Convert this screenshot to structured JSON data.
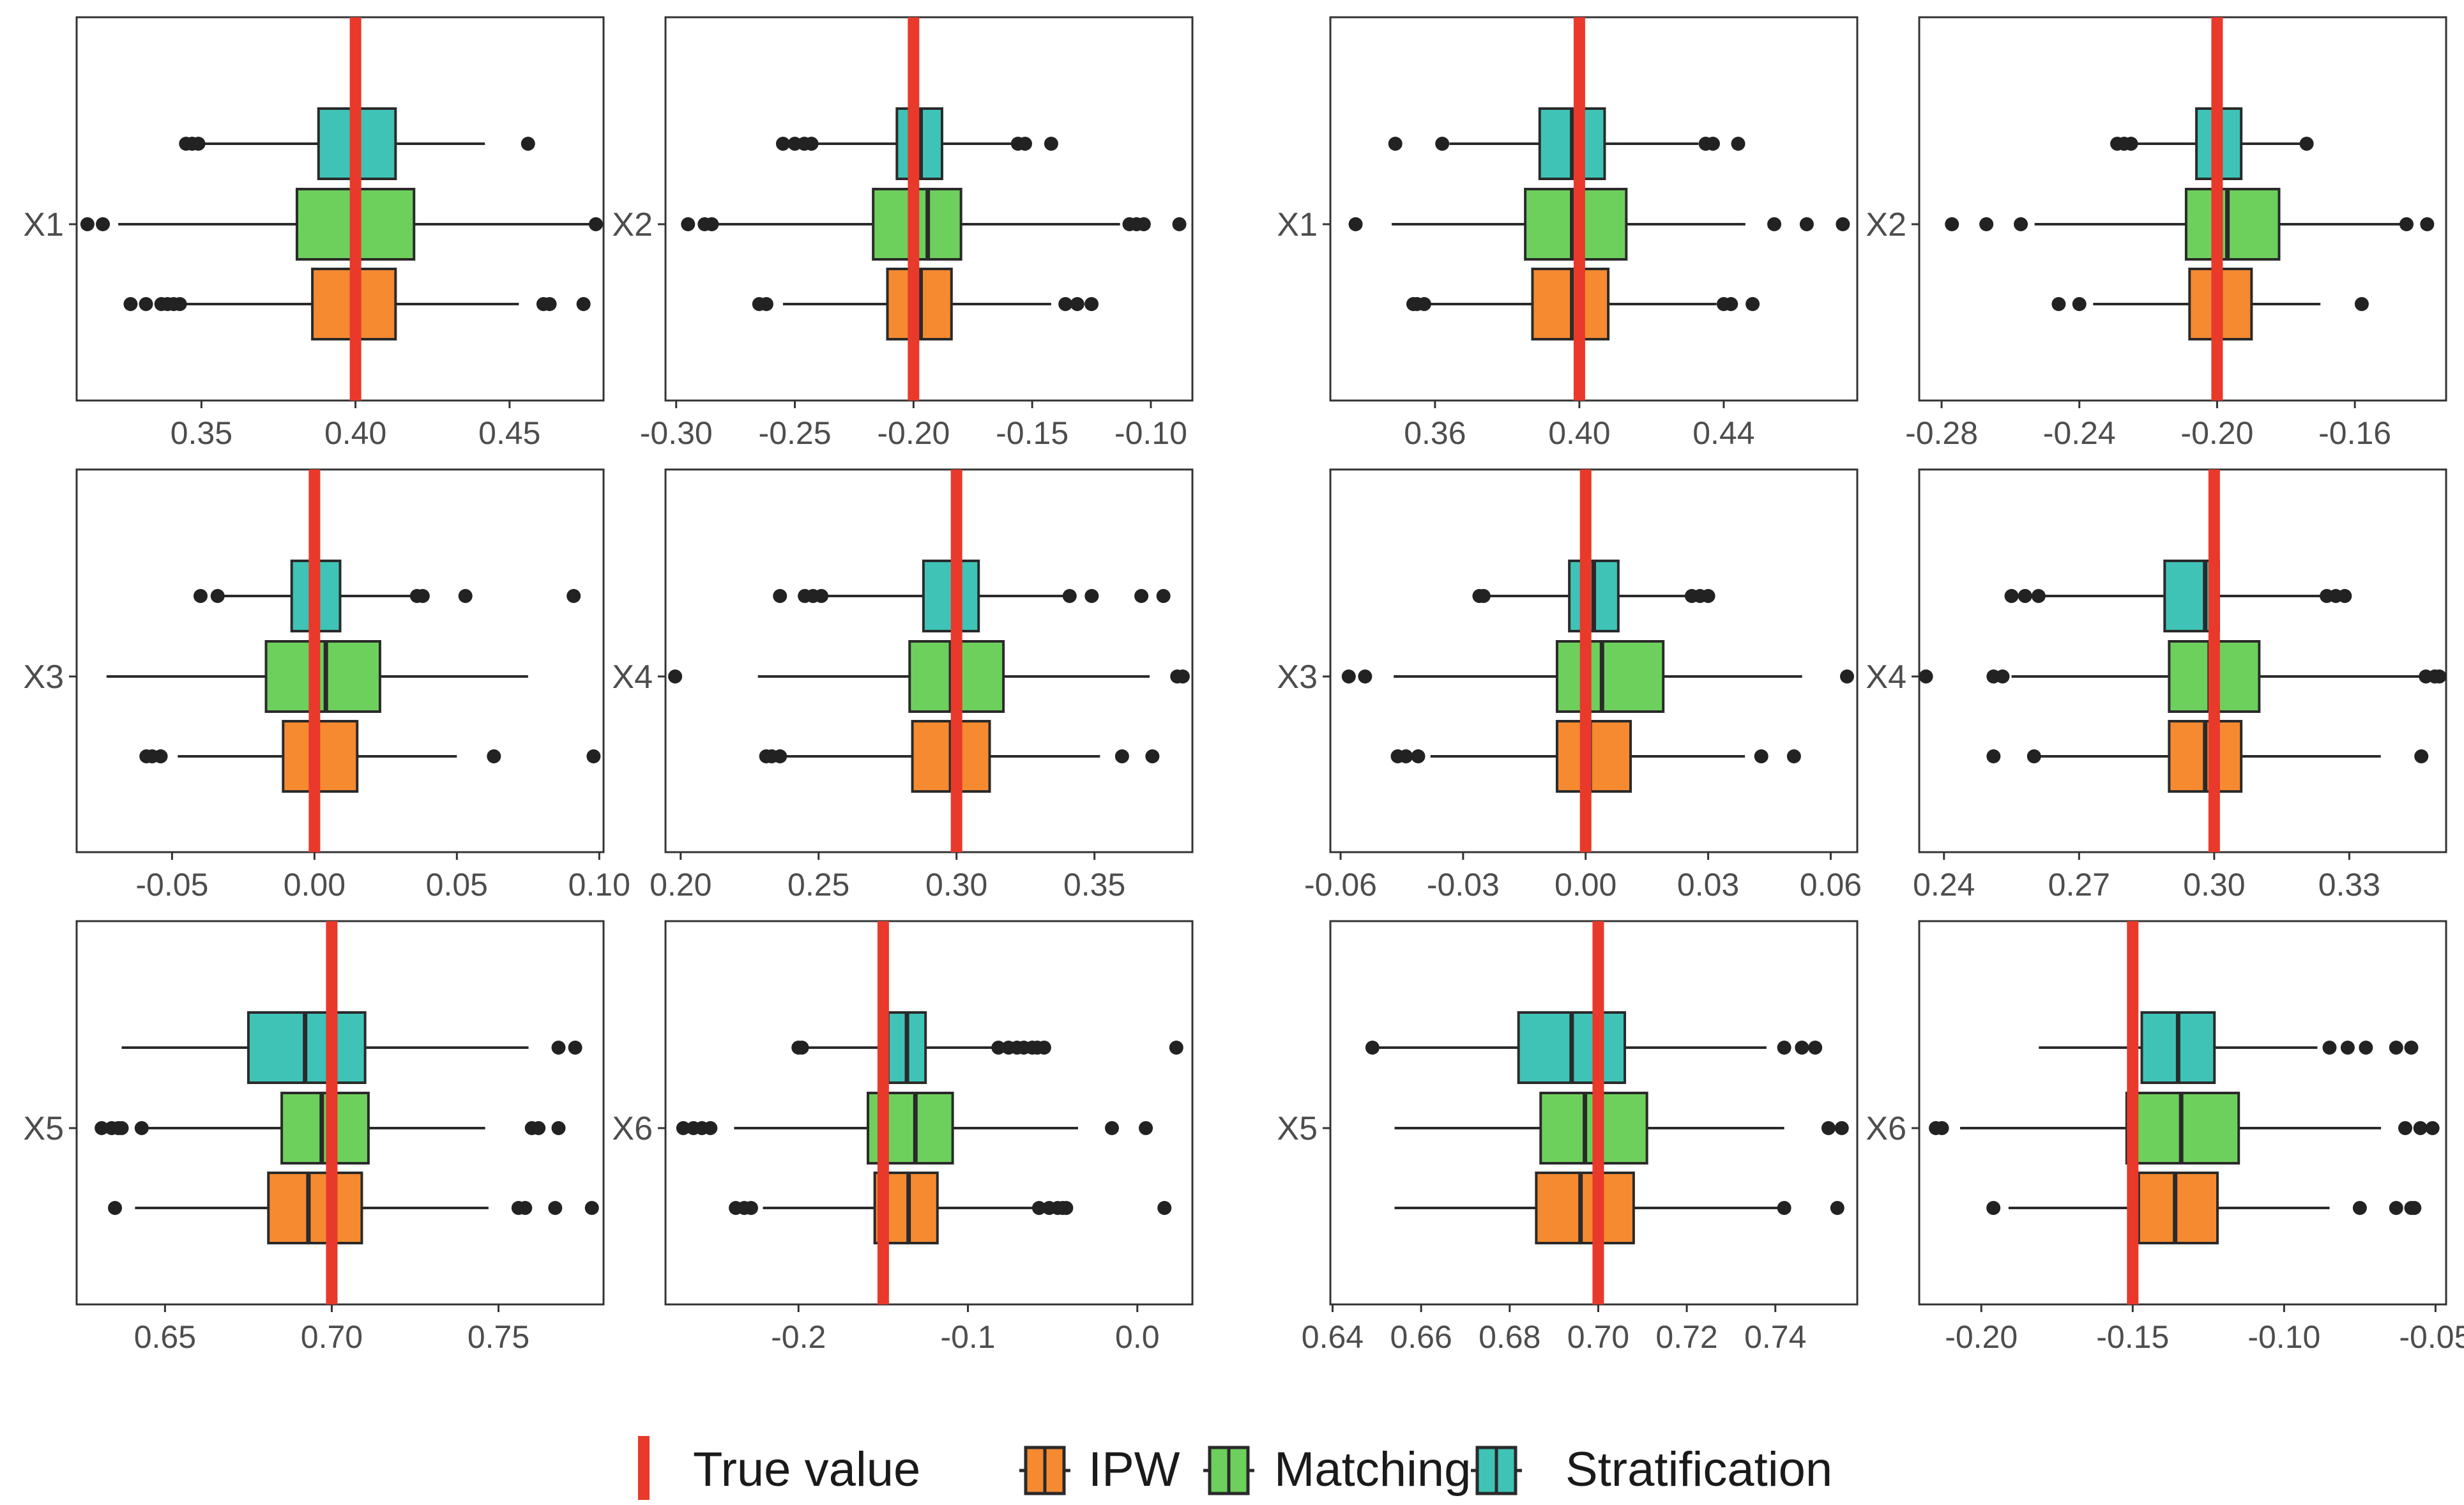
{
  "colors": {
    "ipw": "#f58a31",
    "matching": "#6dd05c",
    "stratification": "#3fc3b7",
    "true_value": "#e8392b",
    "outline": "#2a2a2a",
    "outlier": "#222222",
    "panel_border": "#333333",
    "axis_text": "#4d4d4d"
  },
  "legend": {
    "true_value": "True value",
    "ipw": "IPW",
    "matching": "Matching",
    "stratification": "Stratification"
  },
  "chart_data": [
    {
      "type": "boxplot",
      "variable": "X1",
      "true_value": 0.4,
      "xlim": [
        0.3095,
        0.4805
      ],
      "ticks": [
        0.35,
        0.4,
        0.45
      ],
      "tick_labels": [
        "0.35",
        "0.40",
        "0.45"
      ],
      "series": [
        {
          "name": "Stratification",
          "q1": 0.388,
          "median": 0.401,
          "q3": 0.413,
          "whisker_low": 0.348,
          "whisker_high": 0.442,
          "outliers": [
            0.345,
            0.347,
            0.349,
            0.456
          ]
        },
        {
          "name": "Matching",
          "q1": 0.381,
          "median": 0.401,
          "q3": 0.419,
          "whisker_low": 0.323,
          "whisker_high": 0.477,
          "outliers": [
            0.313,
            0.318,
            0.478
          ]
        },
        {
          "name": "IPW",
          "q1": 0.386,
          "median": 0.4,
          "q3": 0.413,
          "whisker_low": 0.335,
          "whisker_high": 0.453,
          "outliers": [
            0.327,
            0.332,
            0.337,
            0.339,
            0.341,
            0.343,
            0.461,
            0.463,
            0.474
          ]
        }
      ]
    },
    {
      "type": "boxplot",
      "variable": "X2",
      "true_value": -0.2,
      "xlim": [
        -0.3045,
        -0.0825
      ],
      "ticks": [
        -0.3,
        -0.25,
        -0.2,
        -0.15,
        -0.1
      ],
      "tick_labels": [
        "-0.30",
        "-0.25",
        "-0.20",
        "-0.15",
        "-0.10"
      ],
      "series": [
        {
          "name": "Stratification",
          "q1": -0.207,
          "median": -0.197,
          "q3": -0.188,
          "whisker_low": -0.247,
          "whisker_high": -0.158,
          "outliers": [
            -0.255,
            -0.25,
            -0.246,
            -0.243,
            -0.156,
            -0.153,
            -0.142
          ]
        },
        {
          "name": "Matching",
          "q1": -0.217,
          "median": -0.194,
          "q3": -0.18,
          "whisker_low": -0.283,
          "whisker_high": -0.113,
          "outliers": [
            -0.295,
            -0.288,
            -0.285,
            -0.109,
            -0.106,
            -0.103,
            -0.088
          ]
        },
        {
          "name": "IPW",
          "q1": -0.211,
          "median": -0.197,
          "q3": -0.184,
          "whisker_low": -0.255,
          "whisker_high": -0.142,
          "outliers": [
            -0.265,
            -0.262,
            -0.136,
            -0.131,
            -0.125
          ]
        }
      ]
    },
    {
      "type": "boxplot",
      "variable": "X1",
      "true_value": 0.4,
      "xlim": [
        0.331,
        0.477
      ],
      "ticks": [
        0.36,
        0.4,
        0.44
      ],
      "tick_labels": [
        "0.36",
        "0.40",
        "0.44"
      ],
      "series": [
        {
          "name": "Stratification",
          "q1": 0.389,
          "median": 0.398,
          "q3": 0.407,
          "whisker_low": 0.364,
          "whisker_high": 0.433,
          "outliers": [
            0.349,
            0.362,
            0.435,
            0.437,
            0.444
          ]
        },
        {
          "name": "Matching",
          "q1": 0.385,
          "median": 0.398,
          "q3": 0.413,
          "whisker_low": 0.348,
          "whisker_high": 0.446,
          "outliers": [
            0.338,
            0.454,
            0.463,
            0.473
          ]
        },
        {
          "name": "IPW",
          "q1": 0.387,
          "median": 0.398,
          "q3": 0.408,
          "whisker_low": 0.358,
          "whisker_high": 0.438,
          "outliers": [
            0.354,
            0.355,
            0.357,
            0.44,
            0.442,
            0.448
          ]
        }
      ]
    },
    {
      "type": "boxplot",
      "variable": "X2",
      "true_value": -0.2,
      "xlim": [
        -0.2865,
        -0.1335
      ],
      "ticks": [
        -0.28,
        -0.24,
        -0.2,
        -0.16
      ],
      "tick_labels": [
        "-0.28",
        "-0.24",
        "-0.20",
        "-0.16"
      ],
      "series": [
        {
          "name": "Stratification",
          "q1": -0.206,
          "median": -0.2,
          "q3": -0.193,
          "whisker_low": -0.223,
          "whisker_high": -0.174,
          "outliers": [
            -0.229,
            -0.227,
            -0.225,
            -0.174
          ]
        },
        {
          "name": "Matching",
          "q1": -0.209,
          "median": -0.197,
          "q3": -0.182,
          "whisker_low": -0.253,
          "whisker_high": -0.145,
          "outliers": [
            -0.277,
            -0.267,
            -0.257,
            -0.145,
            -0.139
          ]
        },
        {
          "name": "IPW",
          "q1": -0.208,
          "median": -0.199,
          "q3": -0.19,
          "whisker_low": -0.236,
          "whisker_high": -0.17,
          "outliers": [
            -0.246,
            -0.24,
            -0.158
          ]
        }
      ]
    },
    {
      "type": "boxplot",
      "variable": "X3",
      "true_value": 0.0,
      "xlim": [
        -0.0835,
        0.1015
      ],
      "ticks": [
        -0.05,
        0.0,
        0.05,
        0.1
      ],
      "tick_labels": [
        "-0.05",
        "0.00",
        "0.05",
        "0.10"
      ],
      "series": [
        {
          "name": "Stratification",
          "q1": -0.008,
          "median": 0.001,
          "q3": 0.009,
          "whisker_low": -0.032,
          "whisker_high": 0.035,
          "outliers": [
            -0.04,
            -0.034,
            0.036,
            0.038,
            0.053,
            0.091
          ]
        },
        {
          "name": "Matching",
          "q1": -0.017,
          "median": 0.004,
          "q3": 0.023,
          "whisker_low": -0.073,
          "whisker_high": 0.075,
          "outliers": []
        },
        {
          "name": "IPW",
          "q1": -0.011,
          "median": 0.001,
          "q3": 0.015,
          "whisker_low": -0.048,
          "whisker_high": 0.05,
          "outliers": [
            -0.059,
            -0.057,
            -0.054,
            0.063,
            0.098
          ]
        }
      ]
    },
    {
      "type": "boxplot",
      "variable": "X4",
      "true_value": 0.3,
      "xlim": [
        0.1945,
        0.3855
      ],
      "ticks": [
        0.2,
        0.25,
        0.3,
        0.35
      ],
      "tick_labels": [
        "0.20",
        "0.25",
        "0.30",
        "0.35"
      ],
      "series": [
        {
          "name": "Stratification",
          "q1": 0.288,
          "median": 0.301,
          "q3": 0.308,
          "whisker_low": 0.252,
          "whisker_high": 0.341,
          "outliers": [
            0.236,
            0.245,
            0.248,
            0.251,
            0.341,
            0.349,
            0.367,
            0.375
          ]
        },
        {
          "name": "Matching",
          "q1": 0.283,
          "median": 0.298,
          "q3": 0.317,
          "whisker_low": 0.228,
          "whisker_high": 0.37,
          "outliers": [
            0.198,
            0.38,
            0.382
          ]
        },
        {
          "name": "IPW",
          "q1": 0.284,
          "median": 0.298,
          "q3": 0.312,
          "whisker_low": 0.238,
          "whisker_high": 0.352,
          "outliers": [
            0.231,
            0.233,
            0.236,
            0.36,
            0.371
          ]
        }
      ]
    },
    {
      "type": "boxplot",
      "variable": "X3",
      "true_value": 0.0,
      "xlim": [
        -0.0625,
        0.0665
      ],
      "ticks": [
        -0.06,
        -0.03,
        0.0,
        0.03,
        0.06
      ],
      "tick_labels": [
        "-0.06",
        "-0.03",
        "0.00",
        "0.03",
        "0.06"
      ],
      "series": [
        {
          "name": "Stratification",
          "q1": -0.004,
          "median": 0.002,
          "q3": 0.008,
          "whisker_low": -0.024,
          "whisker_high": 0.025,
          "outliers": [
            -0.026,
            -0.025,
            0.026,
            0.028,
            0.03
          ]
        },
        {
          "name": "Matching",
          "q1": -0.007,
          "median": 0.004,
          "q3": 0.019,
          "whisker_low": -0.047,
          "whisker_high": 0.053,
          "outliers": [
            -0.058,
            -0.054,
            0.064
          ]
        },
        {
          "name": "IPW",
          "q1": -0.007,
          "median": 0.001,
          "q3": 0.011,
          "whisker_low": -0.038,
          "whisker_high": 0.039,
          "outliers": [
            -0.046,
            -0.044,
            -0.041,
            0.043,
            0.051
          ]
        }
      ]
    },
    {
      "type": "boxplot",
      "variable": "X4",
      "true_value": 0.3,
      "xlim": [
        0.2345,
        0.3515
      ],
      "ticks": [
        0.24,
        0.27,
        0.3,
        0.33
      ],
      "tick_labels": [
        "0.24",
        "0.27",
        "0.30",
        "0.33"
      ],
      "series": [
        {
          "name": "Stratification",
          "q1": 0.289,
          "median": 0.298,
          "q3": 0.301,
          "whisker_low": 0.257,
          "whisker_high": 0.324,
          "outliers": [
            0.255,
            0.258,
            0.261,
            0.325,
            0.327,
            0.329
          ]
        },
        {
          "name": "Matching",
          "q1": 0.29,
          "median": 0.299,
          "q3": 0.31,
          "whisker_low": 0.255,
          "whisker_high": 0.346,
          "outliers": [
            0.236,
            0.251,
            0.253,
            0.347,
            0.349,
            0.35
          ]
        },
        {
          "name": "IPW",
          "q1": 0.29,
          "median": 0.298,
          "q3": 0.306,
          "whisker_low": 0.26,
          "whisker_high": 0.337,
          "outliers": [
            0.251,
            0.26,
            0.346
          ]
        }
      ]
    },
    {
      "type": "boxplot",
      "variable": "X5",
      "true_value": 0.7,
      "xlim": [
        0.6235,
        0.7815
      ],
      "ticks": [
        0.65,
        0.7,
        0.75
      ],
      "tick_labels": [
        "0.65",
        "0.70",
        "0.75"
      ],
      "series": [
        {
          "name": "Stratification",
          "q1": 0.675,
          "median": 0.692,
          "q3": 0.71,
          "whisker_low": 0.637,
          "whisker_high": 0.759,
          "outliers": [
            0.768,
            0.773
          ]
        },
        {
          "name": "Matching",
          "q1": 0.685,
          "median": 0.697,
          "q3": 0.711,
          "whisker_low": 0.641,
          "whisker_high": 0.746,
          "outliers": [
            0.631,
            0.634,
            0.636,
            0.637,
            0.643,
            0.76,
            0.762,
            0.768
          ]
        },
        {
          "name": "IPW",
          "q1": 0.681,
          "median": 0.693,
          "q3": 0.709,
          "whisker_low": 0.641,
          "whisker_high": 0.747,
          "outliers": [
            0.635,
            0.756,
            0.758,
            0.767,
            0.778
          ]
        }
      ]
    },
    {
      "type": "boxplot",
      "variable": "X6",
      "true_value": -0.15,
      "xlim": [
        -0.2785,
        0.0325
      ],
      "ticks": [
        -0.2,
        -0.1,
        0.0
      ],
      "tick_labels": [
        "-0.2",
        "-0.1",
        "0.0"
      ],
      "series": [
        {
          "name": "Stratification",
          "q1": -0.147,
          "median": -0.136,
          "q3": -0.125,
          "whisker_low": -0.197,
          "whisker_high": -0.085,
          "outliers": [
            -0.2,
            -0.198,
            -0.082,
            -0.076,
            -0.071,
            -0.067,
            -0.062,
            -0.059,
            -0.055,
            0.023
          ]
        },
        {
          "name": "Matching",
          "q1": -0.159,
          "median": -0.131,
          "q3": -0.109,
          "whisker_low": -0.238,
          "whisker_high": -0.035,
          "outliers": [
            -0.268,
            -0.262,
            -0.257,
            -0.252,
            -0.015,
            0.005
          ]
        },
        {
          "name": "IPW",
          "q1": -0.155,
          "median": -0.135,
          "q3": -0.118,
          "whisker_low": -0.221,
          "whisker_high": -0.06,
          "outliers": [
            -0.237,
            -0.232,
            -0.228,
            -0.058,
            -0.052,
            -0.047,
            -0.044,
            -0.042,
            0.016
          ]
        }
      ]
    },
    {
      "type": "boxplot",
      "variable": "X5",
      "true_value": 0.7,
      "xlim": [
        0.6395,
        0.7585
      ],
      "ticks": [
        0.64,
        0.66,
        0.68,
        0.7,
        0.72,
        0.74
      ],
      "tick_labels": [
        "0.64",
        "0.66",
        "0.68",
        "0.70",
        "0.72",
        "0.74"
      ],
      "series": [
        {
          "name": "Stratification",
          "q1": 0.682,
          "median": 0.694,
          "q3": 0.706,
          "whisker_low": 0.65,
          "whisker_high": 0.738,
          "outliers": [
            0.649,
            0.742,
            0.746,
            0.749
          ]
        },
        {
          "name": "Matching",
          "q1": 0.687,
          "median": 0.697,
          "q3": 0.711,
          "whisker_low": 0.654,
          "whisker_high": 0.742,
          "outliers": [
            0.752,
            0.755
          ]
        },
        {
          "name": "IPW",
          "q1": 0.686,
          "median": 0.696,
          "q3": 0.708,
          "whisker_low": 0.654,
          "whisker_high": 0.741,
          "outliers": [
            0.742,
            0.754
          ]
        }
      ]
    },
    {
      "type": "boxplot",
      "variable": "X6",
      "true_value": -0.15,
      "xlim": [
        -0.2205,
        -0.0465
      ],
      "ticks": [
        -0.2,
        -0.15,
        -0.1,
        -0.05
      ],
      "tick_labels": [
        "-0.20",
        "-0.15",
        "-0.10",
        "-0.05"
      ],
      "series": [
        {
          "name": "Stratification",
          "q1": -0.147,
          "median": -0.135,
          "q3": -0.123,
          "whisker_low": -0.181,
          "whisker_high": -0.089,
          "outliers": [
            -0.085,
            -0.079,
            -0.073,
            -0.063,
            -0.058
          ]
        },
        {
          "name": "Matching",
          "q1": -0.152,
          "median": -0.134,
          "q3": -0.115,
          "whisker_low": -0.207,
          "whisker_high": -0.068,
          "outliers": [
            -0.215,
            -0.213,
            -0.06,
            -0.055,
            -0.051
          ]
        },
        {
          "name": "IPW",
          "q1": -0.148,
          "median": -0.136,
          "q3": -0.122,
          "whisker_low": -0.191,
          "whisker_high": -0.085,
          "outliers": [
            -0.196,
            -0.075,
            -0.063,
            -0.058,
            -0.057
          ]
        }
      ]
    }
  ]
}
